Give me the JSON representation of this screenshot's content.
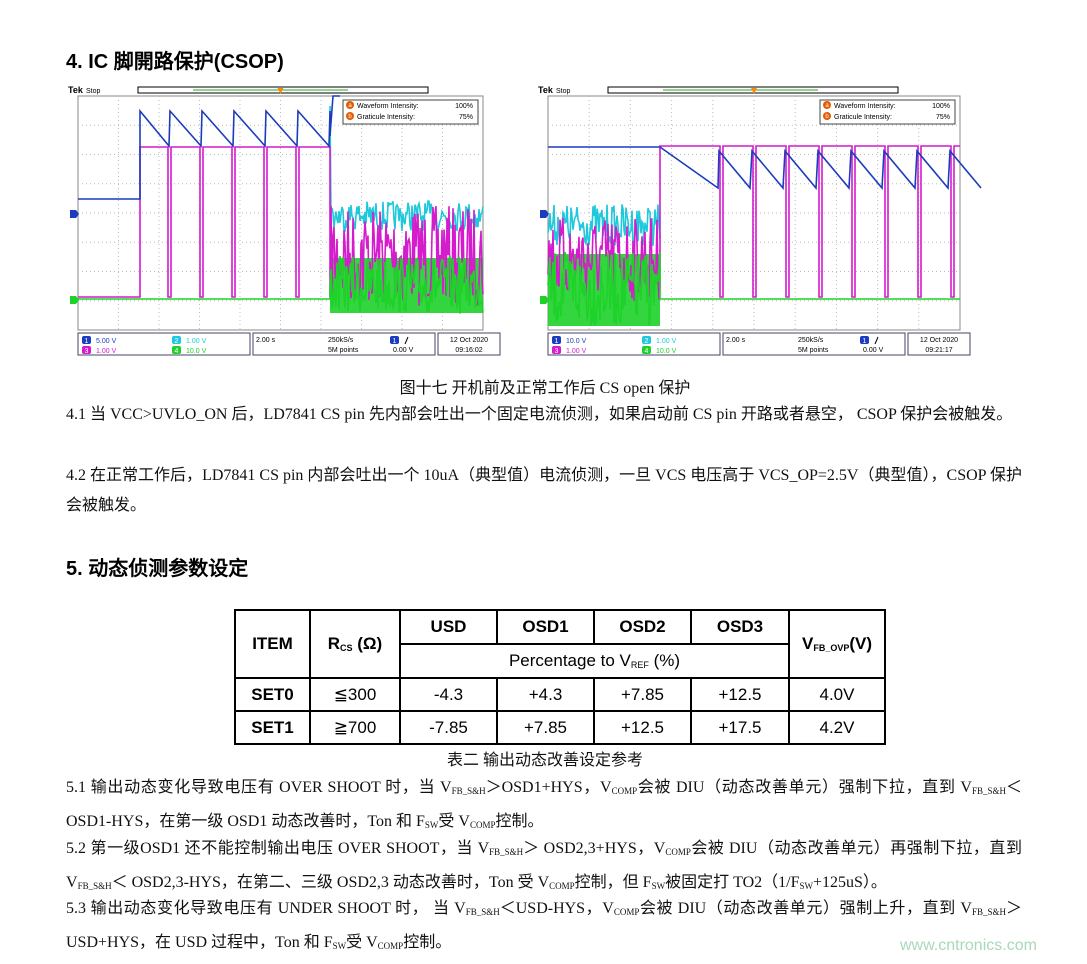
{
  "section4": {
    "heading": "4. IC 脚開路保护(CSOP)",
    "paragraphs": [
      [
        "4.1 当 VCC>UVLO_ON 后，LD7841 CS pin 先内部会吐出一个固定电流侦测，如果启动前 CS pin 开路或者悬空， CSOP 保护会被触发。"
      ],
      [
        "4.2 在正常工作后，LD7841 CS pin 内部会吐出一个 10uA（典型值）电流侦测，一旦 VCS 电压高于 VCS_OP=2.5V（典型值），CSOP 保护会被触发。"
      ]
    ]
  },
  "scopes": [
    {
      "brand": "Tek",
      "state": "Stop",
      "markers": [
        "a",
        "b"
      ],
      "waveform_intensity_label": "Waveform Intensity:",
      "waveform_intensity": "100%",
      "graticule_intensity_label": "Graticule Intensity:",
      "graticule_intensity": "75%",
      "channels": [
        {
          "number": "1",
          "scale": "5.00 V"
        },
        {
          "number": "2",
          "scale": "1.00 V"
        },
        {
          "number": "3",
          "scale": "1.00 V"
        },
        {
          "number": "4",
          "scale": "10.0 V"
        }
      ],
      "timebase": "2.00 s",
      "sample_rate": "250kS/s",
      "record_length": "5M points",
      "trigger_channel": "1",
      "trigger_level": "0.00 V",
      "date": "12 Oct 2020",
      "time": "09:16:02"
    },
    {
      "brand": "Tek",
      "state": "Stop",
      "markers": [
        "a",
        "b"
      ],
      "waveform_intensity_label": "Waveform Intensity:",
      "waveform_intensity": "100%",
      "graticule_intensity_label": "Graticule Intensity:",
      "graticule_intensity": "75%",
      "channels": [
        {
          "number": "1",
          "scale": "10.0 V"
        },
        {
          "number": "2",
          "scale": "1.00 V"
        },
        {
          "number": "3",
          "scale": "1.00 V"
        },
        {
          "number": "4",
          "scale": "10.0 V"
        }
      ],
      "timebase": "2.00 s",
      "sample_rate": "250kS/s",
      "record_length": "5M points",
      "trigger_channel": "1",
      "trigger_level": "0.00 V",
      "date": "12 Oct 2020",
      "time": "09:21:17"
    }
  ],
  "figure_caption": "图十七 开机前及正常工作后 CS open 保护",
  "section5": {
    "heading": "5.  动态侦测参数设定",
    "paragraphs": [
      [
        "5.1 输出动态变化导致电压有 OVER SHOOT 时，当 V",
        {
          "sub": "FB_S&H"
        },
        "＞OSD1+HYS，V",
        {
          "sub": "COMP"
        },
        "会被 DIU（动态改善单元）强制下拉，直到 V",
        {
          "sub": "FB_S&H"
        },
        "＜ OSD1-HYS，在第一级 OSD1 动态改善时，Ton 和 F",
        {
          "sub": "SW"
        },
        "受 V",
        {
          "sub": "COMP"
        },
        "控制。"
      ],
      [
        "5.2 第一级OSD1 还不能控制输出电压 OVER SHOOT，当 V",
        {
          "sub": "FB_S&H"
        },
        "＞ OSD2,3+HYS，V",
        {
          "sub": "COMP"
        },
        "会被 DIU（动态改善单元）再强制下拉，直到 V",
        {
          "sub": "FB_S&H"
        },
        "＜ OSD2,3-HYS，在第二、三级 OSD2,3 动态改善时，Ton 受 V",
        {
          "sub": "COMP"
        },
        "控制，但 F",
        {
          "sub": "SW"
        },
        "被固定打 TO2（1/F",
        {
          "sub": "SW"
        },
        "+125uS）。"
      ],
      [
        "5.3 输出动态变化导致电压有 UNDER SHOOT 时， 当 V",
        {
          "sub": "FB_S&H"
        },
        "＜USD-HYS，V",
        {
          "sub": "COMP"
        },
        "会被 DIU（动态改善单元）强制上升，直到 V",
        {
          "sub": "FB_S&H"
        },
        "＞USD+HYS，在 USD 过程中，Ton 和 F",
        {
          "sub": "SW"
        },
        "受 V",
        {
          "sub": "COMP"
        },
        "控制。"
      ]
    ]
  },
  "table": {
    "item": "ITEM",
    "rcs": [
      "R",
      {
        "sub": "CS"
      },
      " (Ω)"
    ],
    "columns": [
      "USD",
      "OSD1",
      "OSD2",
      "OSD3"
    ],
    "percentage": [
      "Percentage to V",
      {
        "sub": "REF"
      },
      " (%)"
    ],
    "vfb": [
      "V",
      {
        "sub": "FB_OVP"
      },
      "(V)"
    ],
    "rows": [
      [
        "SET0",
        "≦300",
        "-4.3",
        "+4.3",
        "+7.85",
        "+12.5",
        "4.0V"
      ],
      [
        "SET1",
        "≧700",
        "-7.85",
        "+7.85",
        "+12.5",
        "+17.5",
        "4.2V"
      ]
    ]
  },
  "table_caption": "表二 输出动态改善设定参考",
  "watermark": "www.cntronics.com"
}
